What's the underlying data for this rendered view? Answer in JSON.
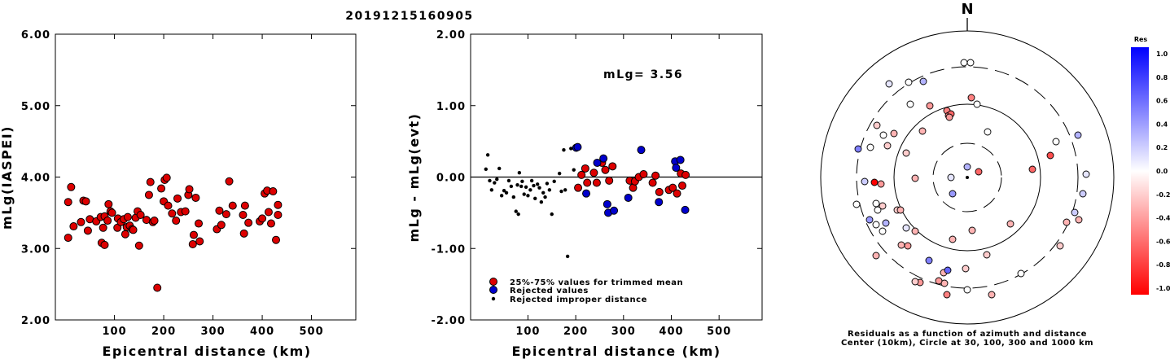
{
  "title": "20191215160905",
  "chart_data": [
    {
      "type": "scatter",
      "ylabel": "mLg(IASPEI)",
      "xlabel": "Epicentral distance (km)",
      "xlim": [
        -20,
        590
      ],
      "ylim": [
        2.0,
        6.0
      ],
      "xticks": [
        "100",
        "200",
        "300",
        "400",
        "500"
      ],
      "yticks": [
        "2.00",
        "3.00",
        "4.00",
        "5.00",
        "6.00"
      ],
      "series": [
        {
          "color": "#dd0000",
          "points": [
            [
              6,
              3.65
            ],
            [
              6,
              3.15
            ],
            [
              12,
              3.86
            ],
            [
              17,
              3.31
            ],
            [
              32,
              3.37
            ],
            [
              37,
              3.67
            ],
            [
              42,
              3.66
            ],
            [
              46,
              3.25
            ],
            [
              50,
              3.41
            ],
            [
              63,
              3.38
            ],
            [
              72,
              3.44
            ],
            [
              74,
              3.08
            ],
            [
              77,
              3.29
            ],
            [
              80,
              3.05
            ],
            [
              80,
              3.45
            ],
            [
              86,
              3.39
            ],
            [
              88,
              3.62
            ],
            [
              92,
              3.52
            ],
            [
              95,
              3.5
            ],
            [
              106,
              3.29
            ],
            [
              107,
              3.42
            ],
            [
              113,
              3.37
            ],
            [
              119,
              3.41
            ],
            [
              122,
              3.2
            ],
            [
              125,
              3.3
            ],
            [
              127,
              3.44
            ],
            [
              131,
              3.32
            ],
            [
              136,
              3.27
            ],
            [
              138,
              3.26
            ],
            [
              143,
              3.43
            ],
            [
              147,
              3.52
            ],
            [
              150,
              3.04
            ],
            [
              153,
              3.47
            ],
            [
              165,
              3.4
            ],
            [
              170,
              3.75
            ],
            [
              173,
              3.93
            ],
            [
              178,
              3.37
            ],
            [
              181,
              3.39
            ],
            [
              187,
              2.45
            ],
            [
              195,
              3.84
            ],
            [
              200,
              3.66
            ],
            [
              202,
              3.96
            ],
            [
              206,
              3.99
            ],
            [
              209,
              3.6
            ],
            [
              217,
              3.49
            ],
            [
              225,
              3.39
            ],
            [
              228,
              3.7
            ],
            [
              235,
              3.51
            ],
            [
              244,
              3.52
            ],
            [
              250,
              3.75
            ],
            [
              252,
              3.83
            ],
            [
              259,
              3.06
            ],
            [
              261,
              3.19
            ],
            [
              265,
              3.71
            ],
            [
              271,
              3.35
            ],
            [
              273,
              3.1
            ],
            [
              308,
              3.27
            ],
            [
              313,
              3.53
            ],
            [
              317,
              3.33
            ],
            [
              327,
              3.48
            ],
            [
              333,
              3.94
            ],
            [
              340,
              3.6
            ],
            [
              361,
              3.47
            ],
            [
              363,
              3.21
            ],
            [
              365,
              3.6
            ],
            [
              372,
              3.36
            ],
            [
              395,
              3.38
            ],
            [
              400,
              3.42
            ],
            [
              405,
              3.77
            ],
            [
              410,
              3.81
            ],
            [
              413,
              3.51
            ],
            [
              418,
              3.35
            ],
            [
              422,
              3.8
            ],
            [
              428,
              3.12
            ],
            [
              432,
              3.61
            ],
            [
              432,
              3.47
            ]
          ]
        }
      ]
    },
    {
      "type": "scatter",
      "ylabel": "mLg - mLg(evt)",
      "xlabel": "Epicentral distance (km)",
      "xlim": [
        -20,
        590
      ],
      "ylim": [
        -2.0,
        2.0
      ],
      "xticks": [
        "100",
        "200",
        "300",
        "400",
        "500"
      ],
      "yticks": [
        "-2.00",
        "-1.00",
        "0.00",
        "1.00",
        "2.00"
      ],
      "annotation": "mLg= 3.56",
      "legend": [
        "25%-75% values for trimmed mean",
        "Rejected values",
        "Rejected improper distance"
      ],
      "series": [
        {
          "name": "25%-75% values for trimmed mean",
          "color": "#dd0000",
          "points": [
            [
              205,
              -0.15
            ],
            [
              212,
              0.03
            ],
            [
              220,
              0.12
            ],
            [
              224,
              -0.08
            ],
            [
              238,
              0.06
            ],
            [
              244,
              -0.08
            ],
            [
              255,
              0.2
            ],
            [
              262,
              0.1
            ],
            [
              270,
              -0.05
            ],
            [
              277,
              0.15
            ],
            [
              313,
              -0.05
            ],
            [
              320,
              -0.15
            ],
            [
              324,
              -0.06
            ],
            [
              332,
              0.0
            ],
            [
              342,
              0.04
            ],
            [
              361,
              -0.08
            ],
            [
              367,
              0.02
            ],
            [
              375,
              -0.21
            ],
            [
              395,
              -0.18
            ],
            [
              403,
              -0.15
            ],
            [
              412,
              -0.23
            ],
            [
              420,
              0.05
            ],
            [
              423,
              -0.12
            ],
            [
              430,
              0.03
            ]
          ]
        },
        {
          "name": "Rejected values",
          "color": "#0000cc",
          "points": [
            [
              201,
              0.41
            ],
            [
              204,
              0.42
            ],
            [
              222,
              -0.23
            ],
            [
              245,
              0.2
            ],
            [
              258,
              0.26
            ],
            [
              266,
              -0.38
            ],
            [
              268,
              -0.5
            ],
            [
              280,
              -0.47
            ],
            [
              310,
              -0.29
            ],
            [
              337,
              0.38
            ],
            [
              374,
              -0.35
            ],
            [
              408,
              0.22
            ],
            [
              410,
              0.13
            ],
            [
              419,
              0.24
            ],
            [
              429,
              -0.46
            ]
          ]
        },
        {
          "name": "Rejected improper distance",
          "color": "#000000",
          "points": [
            [
              12,
              0.11
            ],
            [
              16,
              0.31
            ],
            [
              20,
              -0.05
            ],
            [
              24,
              -0.18
            ],
            [
              30,
              -0.08
            ],
            [
              35,
              -0.03
            ],
            [
              40,
              0.12
            ],
            [
              45,
              -0.26
            ],
            [
              50,
              -0.19
            ],
            [
              55,
              -0.22
            ],
            [
              60,
              -0.05
            ],
            [
              65,
              -0.13
            ],
            [
              70,
              -0.28
            ],
            [
              75,
              -0.48
            ],
            [
              78,
              -0.11
            ],
            [
              80,
              -0.52
            ],
            [
              82,
              0.06
            ],
            [
              86,
              -0.13
            ],
            [
              88,
              -0.06
            ],
            [
              92,
              -0.24
            ],
            [
              96,
              -0.14
            ],
            [
              100,
              -0.26
            ],
            [
              105,
              -0.18
            ],
            [
              108,
              -0.05
            ],
            [
              112,
              -0.12
            ],
            [
              115,
              -0.3
            ],
            [
              120,
              -0.1
            ],
            [
              124,
              -0.15
            ],
            [
              128,
              -0.35
            ],
            [
              132,
              -0.22
            ],
            [
              136,
              -0.28
            ],
            [
              140,
              -0.09
            ],
            [
              145,
              -0.18
            ],
            [
              150,
              -0.52
            ],
            [
              155,
              -0.06
            ],
            [
              166,
              0.05
            ],
            [
              170,
              -0.2
            ],
            [
              175,
              0.38
            ],
            [
              178,
              -0.18
            ],
            [
              183,
              -1.11
            ],
            [
              190,
              0.4
            ],
            [
              196,
              0.1
            ]
          ]
        }
      ]
    },
    {
      "type": "scatter",
      "caption_line1": "Residuals as a function of azimuth and distance",
      "caption_line2": "Center (10km), Circle at 30, 100, 300 and 1000 km",
      "north_label": "N",
      "colorbar": {
        "title": "Res",
        "ticks": [
          "1.0",
          "0.8",
          "0.6",
          "0.4",
          "0.2",
          "0.0",
          "-0.2",
          "-0.4",
          "-0.6",
          "-0.8",
          "-1.0"
        ],
        "max_color": "#0000ff",
        "mid_color": "#ffffff",
        "min_color": "#ff0000"
      },
      "points": [
        [
          1184,
          77,
          0.0
        ],
        [
          1192,
          77,
          0.0
        ],
        [
          1092,
          103,
          0.1
        ],
        [
          1116,
          101,
          0.0
        ],
        [
          1134,
          100,
          0.3
        ],
        [
          1142,
          130,
          -0.4
        ],
        [
          1118,
          128,
          0.0
        ],
        [
          1077,
          154,
          -0.2
        ],
        [
          1098,
          164,
          -0.3
        ],
        [
          1193,
          120,
          -0.5
        ],
        [
          1200,
          128,
          0.0
        ],
        [
          1163,
          136,
          -0.5
        ],
        [
          1165,
          142,
          -0.5
        ],
        [
          1168,
          140,
          -0.6
        ],
        [
          1166,
          144,
          -0.4
        ],
        [
          1213,
          162,
          0.0
        ],
        [
          1133,
          161,
          -0.3
        ],
        [
          1054,
          183,
          0.5
        ],
        [
          1069,
          181,
          0.0
        ],
        [
          1085,
          166,
          0.0
        ],
        [
          1090,
          179,
          -0.2
        ],
        [
          1113,
          188,
          -0.2
        ],
        [
          1297,
          174,
          0.0
        ],
        [
          1324,
          166,
          0.3
        ],
        [
          1290,
          191,
          -0.7
        ],
        [
          1268,
          208,
          -0.6
        ],
        [
          1188,
          205,
          0.3
        ],
        [
          1202,
          211,
          -0.6
        ],
        [
          1170,
          238,
          0.4
        ],
        [
          1168,
          218,
          0.1
        ],
        [
          1124,
          219,
          -0.3
        ],
        [
          1062,
          223,
          0.2
        ],
        [
          1074,
          224,
          -1.0
        ],
        [
          1082,
          226,
          -0.4
        ],
        [
          1334,
          214,
          0.1
        ],
        [
          1330,
          238,
          0.2
        ],
        [
          1052,
          251,
          0.0
        ],
        [
          1076,
          250,
          0.0
        ],
        [
          1084,
          253,
          -0.2
        ],
        [
          1078,
          258,
          0.0
        ],
        [
          1102,
          258,
          -0.2
        ],
        [
          1068,
          270,
          0.4
        ],
        [
          1076,
          276,
          0.0
        ],
        [
          1088,
          274,
          0.3
        ],
        [
          1084,
          284,
          0.0
        ],
        [
          1106,
          258,
          -0.3
        ],
        [
          1113,
          280,
          0.1
        ],
        [
          1320,
          261,
          0.2
        ],
        [
          1325,
          270,
          -0.3
        ],
        [
          1310,
          273,
          -0.3
        ],
        [
          1241,
          275,
          -0.3
        ],
        [
          1194,
          283,
          -0.3
        ],
        [
          1170,
          294,
          -0.3
        ],
        [
          1107,
          301,
          -0.3
        ],
        [
          1115,
          302,
          -0.4
        ],
        [
          1124,
          284,
          -0.3
        ],
        [
          1076,
          314,
          -0.3
        ],
        [
          1141,
          320,
          0.5
        ],
        [
          1212,
          313,
          -0.2
        ],
        [
          1302,
          302,
          -0.2
        ],
        [
          1159,
          335,
          -0.3
        ],
        [
          1164,
          332,
          0.6
        ],
        [
          1130,
          347,
          -0.4
        ],
        [
          1160,
          348,
          -0.3
        ],
        [
          1153,
          345,
          -0.4
        ],
        [
          1163,
          362,
          -0.5
        ],
        [
          1186,
          330,
          -0.2
        ],
        [
          1254,
          336,
          0.0
        ],
        [
          1188,
          356,
          0.0
        ],
        [
          1218,
          362,
          -0.3
        ],
        [
          1124,
          346,
          -0.2
        ]
      ]
    }
  ]
}
